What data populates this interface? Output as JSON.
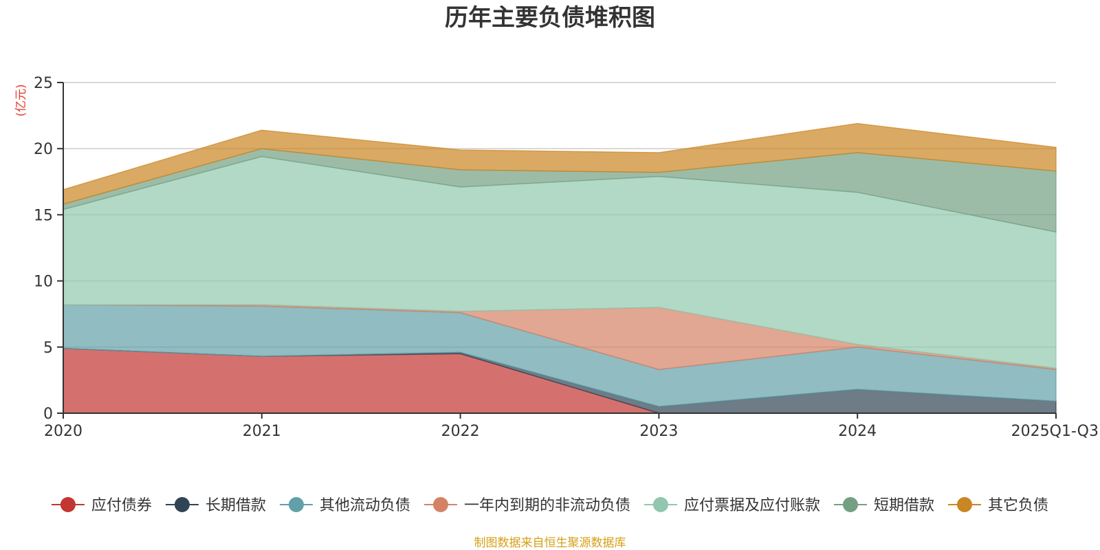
{
  "chart_data": {
    "type": "area",
    "stacked": true,
    "title": "历年主要负债堆积图",
    "ylabel": "(亿元)",
    "xlabel": "",
    "ylim": [
      0,
      25
    ],
    "yticks": [
      0,
      5,
      10,
      15,
      20,
      25
    ],
    "grid": true,
    "legend_position": "bottom",
    "categories": [
      "2020",
      "2021",
      "2022",
      "2023",
      "2024",
      "2025Q1-Q3"
    ],
    "series": [
      {
        "name": "应付债券",
        "color": "#c23531",
        "values": [
          4.9,
          4.3,
          4.5,
          0.0,
          0.0,
          0.0
        ]
      },
      {
        "name": "长期借款",
        "color": "#2f4554",
        "values": [
          0.0,
          0.0,
          0.1,
          0.5,
          1.8,
          0.9
        ]
      },
      {
        "name": "其他流动负债",
        "color": "#61a0a8",
        "values": [
          3.3,
          3.8,
          3.0,
          2.8,
          3.2,
          2.4
        ]
      },
      {
        "name": "一年内到期的非流动负债",
        "color": "#d48265",
        "values": [
          0.0,
          0.1,
          0.1,
          4.7,
          0.2,
          0.1
        ]
      },
      {
        "name": "应付票据及应付账款",
        "color": "#91c7ae",
        "values": [
          7.2,
          11.2,
          9.4,
          9.9,
          11.5,
          10.3
        ]
      },
      {
        "name": "短期借款",
        "color": "#749f83",
        "values": [
          0.4,
          0.6,
          1.3,
          0.3,
          3.0,
          4.6
        ]
      },
      {
        "name": "其它负债",
        "color": "#ca8622",
        "values": [
          1.1,
          1.4,
          1.5,
          1.5,
          2.2,
          1.8
        ]
      }
    ]
  },
  "colors": {
    "title": "#333333",
    "axis": "#333333",
    "grid": "#cccccc",
    "ylabel": "#e8382a",
    "source": "#d4a017"
  },
  "footer": {
    "source": "制图数据来自恒生聚源数据库"
  }
}
